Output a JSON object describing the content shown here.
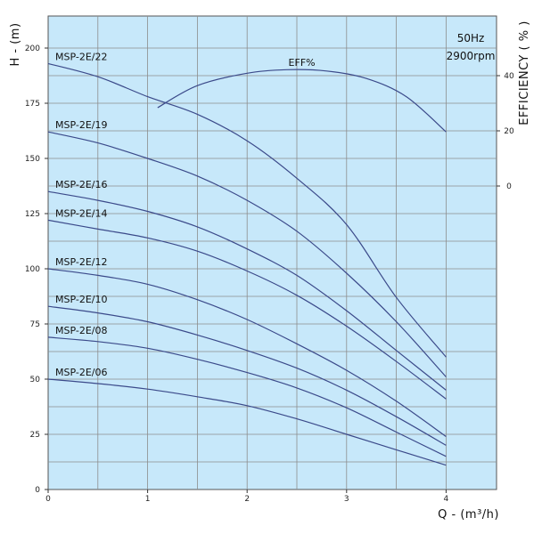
{
  "chart_data": {
    "type": "line",
    "xlabel": "Q - (m³/h)",
    "ylabel": "H - (m)",
    "y2label": "EFFICIENCY  ( % )",
    "xlim": [
      0,
      4.5
    ],
    "ylim": [
      0,
      210
    ],
    "xticks": [
      0,
      1,
      2,
      3,
      4
    ],
    "yticks": [
      0,
      25,
      50,
      75,
      100,
      125,
      150,
      175,
      200
    ],
    "y2ticks": [
      {
        "label": "0",
        "h": 137.5
      },
      {
        "label": "20",
        "h": 162.5
      },
      {
        "label": "40",
        "h": 187.5
      }
    ],
    "grid": true,
    "background": "#c7e8fa",
    "grid_color": "#8d8d8d",
    "line_color": "#3b4a8a",
    "annotations": [
      "50Hz",
      "2900rpm"
    ],
    "efficiency": {
      "name": "EFF%",
      "label_at": {
        "x": 2.55,
        "h": 192
      },
      "x": [
        1.1,
        1.5,
        2.0,
        2.4,
        2.8,
        3.2,
        3.6,
        4.0
      ],
      "h": [
        173,
        183,
        188.6,
        190.2,
        189.6,
        186.2,
        178,
        162
      ]
    },
    "series": [
      {
        "name": "MSP-2E/22",
        "x": [
          0,
          0.5,
          1.0,
          1.5,
          2.0,
          2.5,
          3.0,
          3.5,
          4.0
        ],
        "h": [
          193,
          187,
          178,
          170,
          158,
          141,
          120,
          87,
          60
        ]
      },
      {
        "name": "MSP-2E/19",
        "x": [
          0,
          0.5,
          1.0,
          1.5,
          2.0,
          2.5,
          3.0,
          3.5,
          4.0
        ],
        "h": [
          162,
          157,
          150,
          142,
          131,
          117,
          98,
          76,
          51
        ]
      },
      {
        "name": "MSP-2E/16",
        "x": [
          0,
          0.5,
          1.0,
          1.5,
          2.0,
          2.5,
          3.0,
          3.5,
          4.0
        ],
        "h": [
          135,
          131,
          126,
          119,
          109,
          97,
          81,
          63,
          45
        ]
      },
      {
        "name": "MSP-2E/14",
        "x": [
          0,
          0.5,
          1.0,
          1.5,
          2.0,
          2.5,
          3.0,
          3.5,
          4.0
        ],
        "h": [
          122,
          118,
          114,
          108,
          99,
          88,
          74,
          58,
          41
        ]
      },
      {
        "name": "MSP-2E/12",
        "x": [
          0,
          0.5,
          1.0,
          1.5,
          2.0,
          2.5,
          3.0,
          3.5,
          4.0
        ],
        "h": [
          100,
          97,
          93,
          86,
          77,
          66,
          54,
          40,
          24
        ]
      },
      {
        "name": "MSP-2E/10",
        "x": [
          0,
          0.5,
          1.0,
          1.5,
          2.0,
          2.5,
          3.0,
          3.5,
          4.0
        ],
        "h": [
          83,
          80,
          76,
          70,
          63,
          55,
          45,
          33,
          20
        ]
      },
      {
        "name": "MSP-2E/08",
        "x": [
          0,
          0.5,
          1.0,
          1.5,
          2.0,
          2.5,
          3.0,
          3.5,
          4.0
        ],
        "h": [
          69,
          67,
          64,
          59,
          53,
          46,
          37,
          26,
          15
        ]
      },
      {
        "name": "MSP-2E/06",
        "x": [
          0,
          0.5,
          1.0,
          1.5,
          2.0,
          2.5,
          3.0,
          3.5,
          4.0
        ],
        "h": [
          50,
          48,
          45.5,
          42,
          38,
          32,
          25,
          18,
          11
        ]
      }
    ]
  }
}
